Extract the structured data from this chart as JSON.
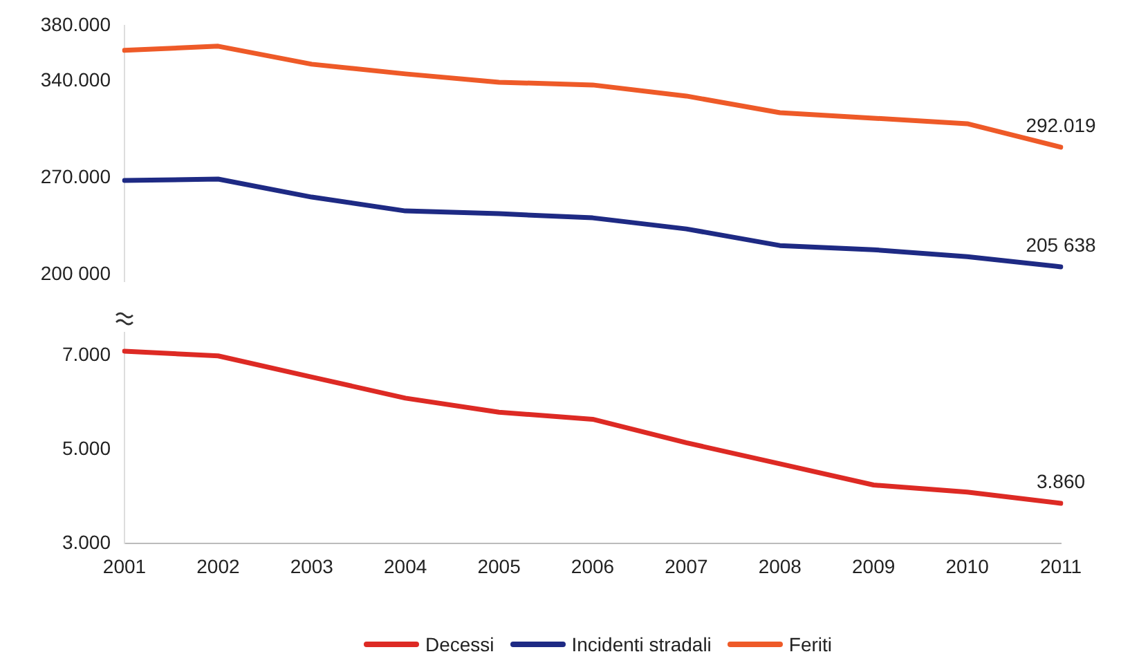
{
  "chart_data": [
    {
      "type": "line",
      "categories": [
        "2001",
        "2002",
        "2003",
        "2004",
        "2005",
        "2006",
        "2007",
        "2008",
        "2009",
        "2010",
        "2011"
      ],
      "series": [
        {
          "name": "Incidenti stradali",
          "color": "#1e2a84",
          "values": [
            268000,
            269000,
            256000,
            246000,
            244000,
            241000,
            233000,
            221000,
            218000,
            213000,
            205638
          ],
          "value_labels": [
            null,
            null,
            null,
            null,
            null,
            null,
            null,
            null,
            null,
            null,
            "205 638"
          ]
        },
        {
          "name": "Feriti",
          "color": "#ee5a28",
          "values": [
            362000,
            365000,
            352000,
            345000,
            339000,
            337000,
            329000,
            317000,
            313000,
            309000,
            292019
          ],
          "value_labels": [
            null,
            null,
            null,
            null,
            null,
            null,
            null,
            null,
            null,
            null,
            "292.019"
          ]
        }
      ],
      "ylim": [
        195000,
        380000
      ],
      "yticks": [
        {
          "value": 200000,
          "label": "200 000"
        },
        {
          "value": 270000,
          "label": "270.000"
        },
        {
          "value": 340000,
          "label": "340.000"
        },
        {
          "value": 380000,
          "label": "380.000"
        }
      ],
      "tick_labels": "y",
      "grid": false,
      "legend": "bottom",
      "marker": "none",
      "line_style": "solid"
    },
    {
      "type": "line",
      "categories": [
        "2001",
        "2002",
        "2003",
        "2004",
        "2005",
        "2006",
        "2007",
        "2008",
        "2009",
        "2010",
        "2011"
      ],
      "series": [
        {
          "name": "Decessi",
          "color": "#dd2a24",
          "values": [
            7100,
            7000,
            6550,
            6100,
            5800,
            5650,
            5150,
            4700,
            4250,
            4100,
            3860
          ],
          "value_labels": [
            null,
            null,
            null,
            null,
            null,
            null,
            null,
            null,
            null,
            null,
            "3.860"
          ]
        }
      ],
      "ylim": [
        3000,
        7500
      ],
      "yticks": [
        {
          "value": 3000,
          "label": "3.000"
        },
        {
          "value": 5000,
          "label": "5.000"
        },
        {
          "value": 7000,
          "label": "7.000"
        }
      ],
      "grid": false,
      "legend": "bottom",
      "marker": "none",
      "line_style": "solid"
    }
  ]
}
